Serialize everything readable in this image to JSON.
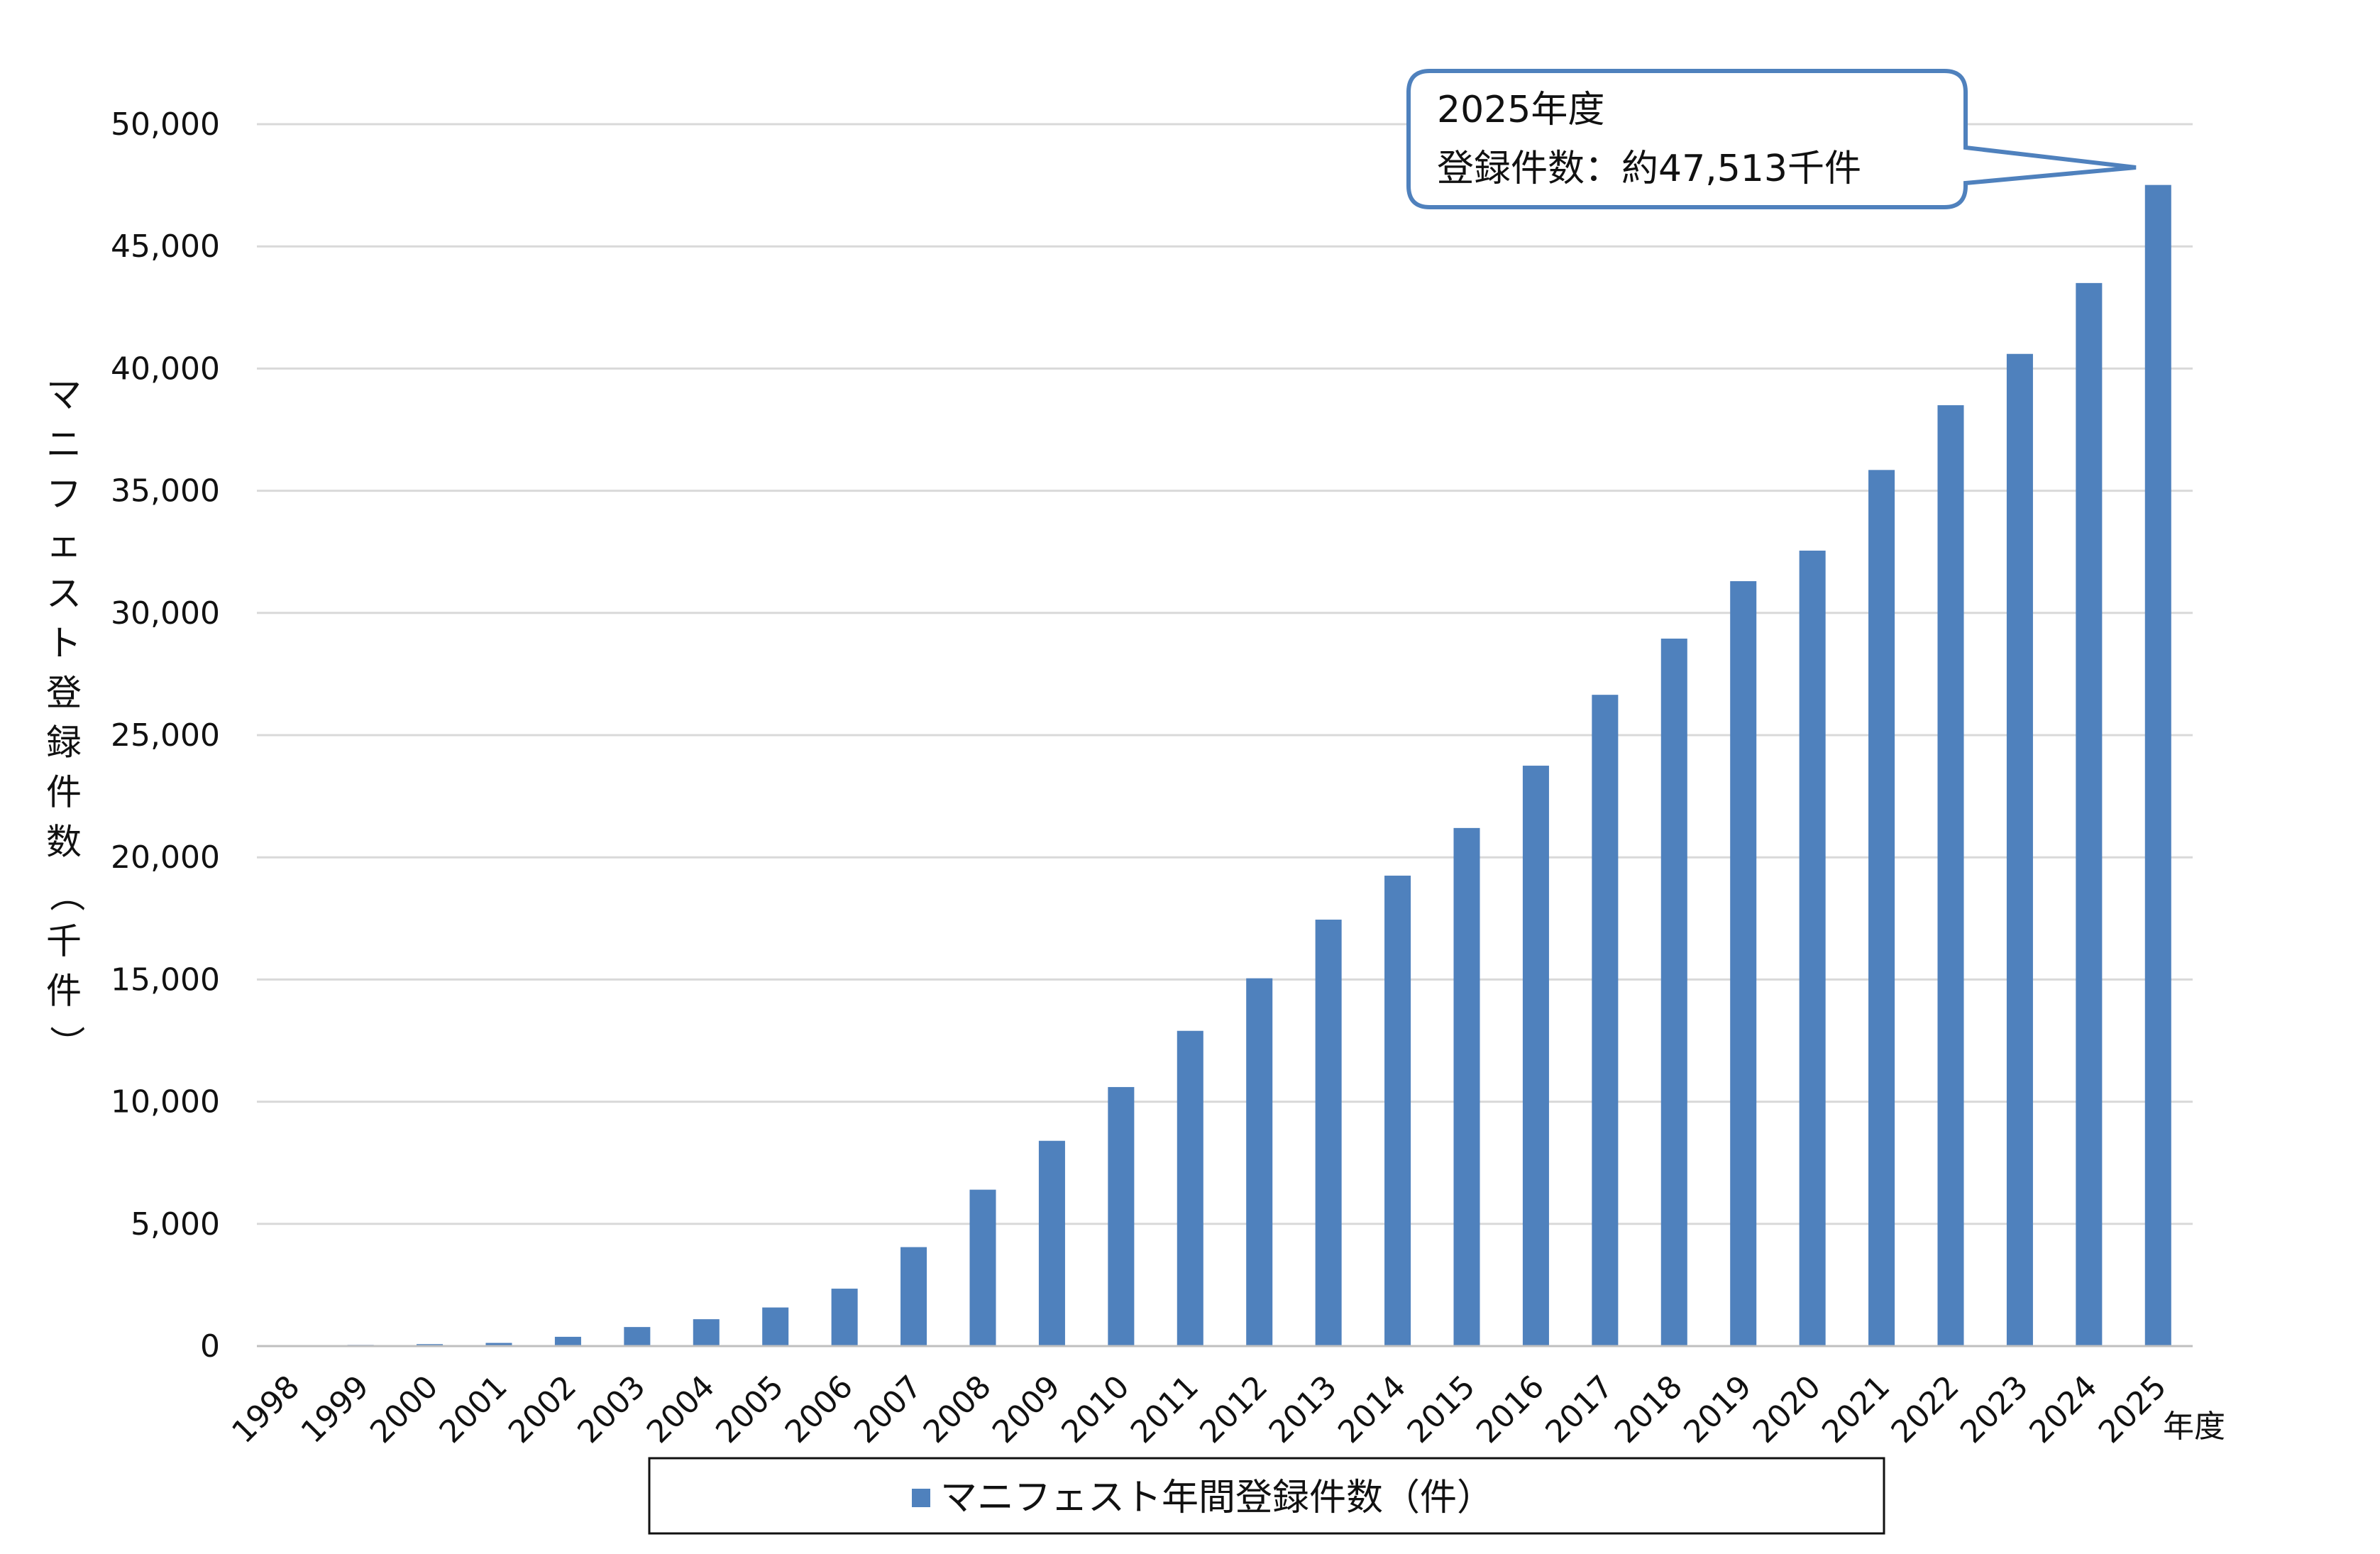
{
  "chart_data": {
    "type": "bar",
    "categories": [
      "1998",
      "1999",
      "2000",
      "2001",
      "2002",
      "2003",
      "2004",
      "2005",
      "2006",
      "2007",
      "2008",
      "2009",
      "2010",
      "2011",
      "2012",
      "2013",
      "2014",
      "2015",
      "2016",
      "2017",
      "2018",
      "2019",
      "2020",
      "2021",
      "2022",
      "2023",
      "2024",
      "2025"
    ],
    "series": [
      {
        "name": "マニフェスト年間登録件数（件）",
        "color": "#4f81bd",
        "values": [
          0,
          50,
          80,
          130,
          380,
          780,
          1100,
          1580,
          2350,
          4050,
          6400,
          8400,
          10600,
          12900,
          15050,
          17450,
          19250,
          21200,
          23750,
          26650,
          28950,
          31300,
          32550,
          35850,
          38500,
          40600,
          43500,
          47513
        ]
      }
    ],
    "ylabel": "マニフェスト登録件数（千件）",
    "xlabel_unit": "年度",
    "ylim": [
      0,
      50000
    ],
    "yticks": [
      "0",
      "5,000",
      "10,000",
      "15,000",
      "20,000",
      "25,000",
      "30,000",
      "35,000",
      "40,000",
      "45,000",
      "50,000"
    ],
    "grid": true,
    "legend_position": "bottom",
    "annotation": {
      "line1": "2025年度",
      "line2": "登録件数：約47,513千件",
      "target_category": "2025"
    }
  }
}
